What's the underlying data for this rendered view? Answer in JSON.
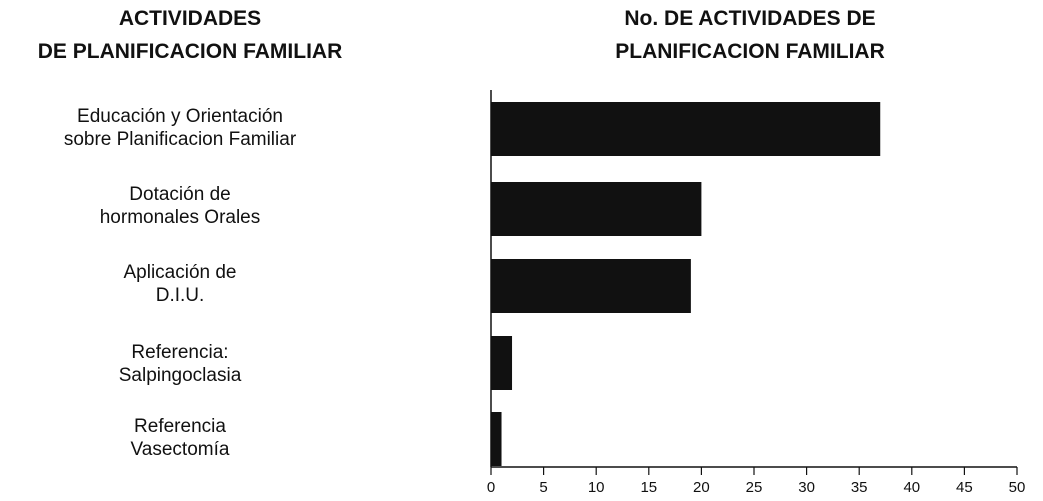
{
  "headings": {
    "left": [
      "ACTIVIDADES",
      "DE PLANIFICACION FAMILIAR"
    ],
    "right": [
      "No. DE ACTIVIDADES DE",
      "PLANIFICACION FAMILIAR"
    ]
  },
  "chart_data": {
    "type": "bar",
    "orientation": "horizontal",
    "categories": [
      [
        "Educación y Orientación",
        "sobre Planificacion Familiar"
      ],
      [
        "Dotación de",
        "hormonales Orales"
      ],
      [
        "Aplicación de",
        "D.I.U."
      ],
      [
        "Referencia:",
        "Salpingoclasia"
      ],
      [
        "Referencia",
        "Vasectomía"
      ]
    ],
    "values": [
      37,
      20,
      19,
      2,
      1
    ],
    "xlim": [
      0,
      50
    ],
    "xticks": [
      0,
      5,
      10,
      15,
      20,
      25,
      30,
      35,
      40,
      45,
      50
    ],
    "grid": false,
    "bar_color": "#111111"
  }
}
